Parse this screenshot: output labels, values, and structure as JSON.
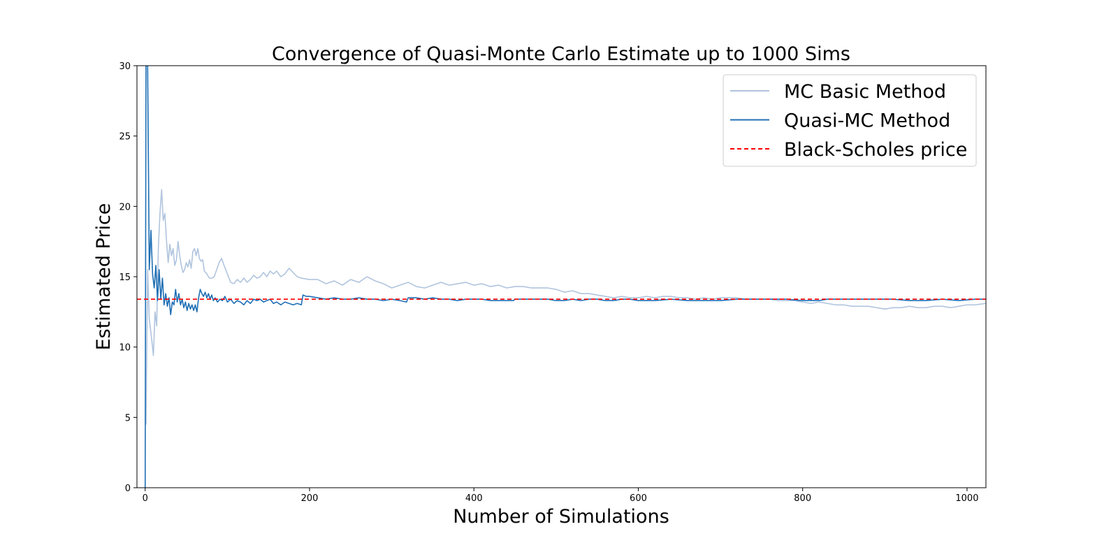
{
  "chart_data": {
    "type": "line",
    "title": "Convergence of Quasi-Monte Carlo Estimate up to 1000 Sims",
    "xlabel": "Number of Simulations",
    "ylabel": "Estimated Price",
    "xlim": [
      -10,
      1023
    ],
    "ylim": [
      0,
      30
    ],
    "xticks": [
      0,
      200,
      400,
      600,
      800,
      1000
    ],
    "yticks": [
      0,
      5,
      10,
      15,
      20,
      25,
      30
    ],
    "grid": false,
    "legend_position": "top-right",
    "series": [
      {
        "name": "MC Basic Method",
        "color": "#b0c4de",
        "style": "solid",
        "points": [
          [
            1,
            4.5
          ],
          [
            3,
            15.5
          ],
          [
            5,
            12.0
          ],
          [
            8,
            10.5
          ],
          [
            10,
            9.4
          ],
          [
            12,
            12.5
          ],
          [
            14,
            11.5
          ],
          [
            16,
            17.0
          ],
          [
            18,
            19.5
          ],
          [
            20,
            21.2
          ],
          [
            22,
            19.0
          ],
          [
            24,
            19.5
          ],
          [
            26,
            17.5
          ],
          [
            28,
            16.0
          ],
          [
            30,
            17.3
          ],
          [
            32,
            16.5
          ],
          [
            34,
            17.0
          ],
          [
            36,
            15.8
          ],
          [
            38,
            16.2
          ],
          [
            40,
            17.5
          ],
          [
            42,
            16.5
          ],
          [
            44,
            15.8
          ],
          [
            46,
            15.3
          ],
          [
            48,
            15.5
          ],
          [
            50,
            16.0
          ],
          [
            52,
            15.7
          ],
          [
            54,
            16.2
          ],
          [
            56,
            15.6
          ],
          [
            58,
            16.8
          ],
          [
            60,
            17.0
          ],
          [
            62,
            16.5
          ],
          [
            64,
            17.0
          ],
          [
            66,
            16.3
          ],
          [
            68,
            16.1
          ],
          [
            70,
            16.2
          ],
          [
            72,
            15.4
          ],
          [
            75,
            15.2
          ],
          [
            78,
            14.9
          ],
          [
            81,
            14.9
          ],
          [
            84,
            15.0
          ],
          [
            87,
            15.5
          ],
          [
            90,
            16.0
          ],
          [
            93,
            16.3
          ],
          [
            96,
            15.8
          ],
          [
            100,
            15.2
          ],
          [
            104,
            14.6
          ],
          [
            108,
            14.5
          ],
          [
            112,
            14.8
          ],
          [
            116,
            14.6
          ],
          [
            120,
            14.9
          ],
          [
            124,
            14.6
          ],
          [
            128,
            14.8
          ],
          [
            132,
            15.1
          ],
          [
            136,
            14.9
          ],
          [
            140,
            15.0
          ],
          [
            144,
            15.3
          ],
          [
            148,
            15.0
          ],
          [
            152,
            15.4
          ],
          [
            156,
            15.2
          ],
          [
            160,
            15.4
          ],
          [
            165,
            15.0
          ],
          [
            170,
            15.2
          ],
          [
            175,
            15.6
          ],
          [
            180,
            15.3
          ],
          [
            185,
            15.0
          ],
          [
            190,
            14.9
          ],
          [
            200,
            14.8
          ],
          [
            210,
            14.8
          ],
          [
            220,
            14.5
          ],
          [
            230,
            14.7
          ],
          [
            240,
            14.4
          ],
          [
            250,
            14.8
          ],
          [
            260,
            14.6
          ],
          [
            270,
            15.0
          ],
          [
            280,
            14.7
          ],
          [
            290,
            14.5
          ],
          [
            300,
            14.2
          ],
          [
            310,
            14.4
          ],
          [
            320,
            14.6
          ],
          [
            330,
            14.3
          ],
          [
            340,
            14.2
          ],
          [
            350,
            14.4
          ],
          [
            360,
            14.6
          ],
          [
            370,
            14.4
          ],
          [
            380,
            14.5
          ],
          [
            390,
            14.6
          ],
          [
            400,
            14.4
          ],
          [
            410,
            14.5
          ],
          [
            420,
            14.3
          ],
          [
            430,
            14.4
          ],
          [
            440,
            14.2
          ],
          [
            450,
            14.3
          ],
          [
            460,
            14.3
          ],
          [
            470,
            14.2
          ],
          [
            480,
            14.2
          ],
          [
            490,
            14.2
          ],
          [
            500,
            14.1
          ],
          [
            510,
            13.9
          ],
          [
            520,
            14.0
          ],
          [
            530,
            13.8
          ],
          [
            540,
            13.8
          ],
          [
            550,
            13.7
          ],
          [
            560,
            13.6
          ],
          [
            570,
            13.5
          ],
          [
            580,
            13.6
          ],
          [
            590,
            13.5
          ],
          [
            600,
            13.5
          ],
          [
            610,
            13.6
          ],
          [
            620,
            13.5
          ],
          [
            630,
            13.6
          ],
          [
            640,
            13.6
          ],
          [
            650,
            13.5
          ],
          [
            660,
            13.5
          ],
          [
            670,
            13.4
          ],
          [
            680,
            13.5
          ],
          [
            690,
            13.4
          ],
          [
            700,
            13.5
          ],
          [
            710,
            13.5
          ],
          [
            720,
            13.5
          ],
          [
            730,
            13.4
          ],
          [
            740,
            13.4
          ],
          [
            750,
            13.4
          ],
          [
            760,
            13.4
          ],
          [
            770,
            13.3
          ],
          [
            780,
            13.3
          ],
          [
            790,
            13.3
          ],
          [
            800,
            13.2
          ],
          [
            810,
            13.1
          ],
          [
            820,
            13.2
          ],
          [
            830,
            13.1
          ],
          [
            840,
            13.0
          ],
          [
            850,
            13.0
          ],
          [
            860,
            12.9
          ],
          [
            870,
            12.9
          ],
          [
            880,
            12.9
          ],
          [
            890,
            12.8
          ],
          [
            900,
            12.7
          ],
          [
            910,
            12.8
          ],
          [
            920,
            12.8
          ],
          [
            930,
            12.9
          ],
          [
            940,
            12.8
          ],
          [
            950,
            12.8
          ],
          [
            960,
            12.9
          ],
          [
            970,
            12.9
          ],
          [
            980,
            12.8
          ],
          [
            990,
            12.9
          ],
          [
            1000,
            13.0
          ],
          [
            1010,
            13.0
          ],
          [
            1023,
            13.1
          ]
        ]
      },
      {
        "name": "Quasi-MC Method",
        "color": "#1f6fb5",
        "style": "solid",
        "points": [
          [
            0,
            0.0
          ],
          [
            1,
            30.0
          ],
          [
            3,
            30.0
          ],
          [
            5,
            15.5
          ],
          [
            7,
            18.3
          ],
          [
            9,
            15.2
          ],
          [
            11,
            14.2
          ],
          [
            13,
            15.8
          ],
          [
            15,
            13.3
          ],
          [
            17,
            15.5
          ],
          [
            19,
            13.4
          ],
          [
            21,
            14.9
          ],
          [
            23,
            13.0
          ],
          [
            25,
            13.8
          ],
          [
            27,
            12.9
          ],
          [
            29,
            13.5
          ],
          [
            31,
            12.3
          ],
          [
            33,
            13.2
          ],
          [
            35,
            13.0
          ],
          [
            37,
            14.1
          ],
          [
            39,
            13.2
          ],
          [
            41,
            13.8
          ],
          [
            43,
            13.0
          ],
          [
            45,
            13.4
          ],
          [
            47,
            12.8
          ],
          [
            49,
            13.2
          ],
          [
            51,
            12.6
          ],
          [
            53,
            13.1
          ],
          [
            55,
            12.7
          ],
          [
            57,
            13.0
          ],
          [
            59,
            12.6
          ],
          [
            61,
            13.0
          ],
          [
            63,
            12.5
          ],
          [
            65,
            13.5
          ],
          [
            67,
            14.1
          ],
          [
            69,
            13.8
          ],
          [
            71,
            13.6
          ],
          [
            73,
            13.9
          ],
          [
            75,
            13.5
          ],
          [
            77,
            13.8
          ],
          [
            79,
            13.4
          ],
          [
            81,
            13.7
          ],
          [
            83,
            13.3
          ],
          [
            85,
            13.5
          ],
          [
            88,
            13.2
          ],
          [
            91,
            13.4
          ],
          [
            94,
            13.3
          ],
          [
            97,
            13.6
          ],
          [
            100,
            13.2
          ],
          [
            104,
            13.4
          ],
          [
            108,
            13.1
          ],
          [
            112,
            13.3
          ],
          [
            116,
            13.2
          ],
          [
            120,
            13.0
          ],
          [
            124,
            13.3
          ],
          [
            128,
            13.1
          ],
          [
            132,
            13.4
          ],
          [
            136,
            13.3
          ],
          [
            140,
            13.4
          ],
          [
            144,
            13.2
          ],
          [
            148,
            13.3
          ],
          [
            152,
            13.4
          ],
          [
            156,
            13.1
          ],
          [
            160,
            13.2
          ],
          [
            165,
            13.0
          ],
          [
            170,
            13.2
          ],
          [
            175,
            13.1
          ],
          [
            180,
            13.0
          ],
          [
            185,
            13.1
          ],
          [
            190,
            13.0
          ],
          [
            192,
            13.7
          ],
          [
            196,
            13.6
          ],
          [
            200,
            13.6
          ],
          [
            210,
            13.5
          ],
          [
            220,
            13.4
          ],
          [
            230,
            13.5
          ],
          [
            240,
            13.4
          ],
          [
            250,
            13.4
          ],
          [
            260,
            13.5
          ],
          [
            270,
            13.4
          ],
          [
            280,
            13.4
          ],
          [
            290,
            13.3
          ],
          [
            300,
            13.4
          ],
          [
            310,
            13.3
          ],
          [
            318,
            13.2
          ],
          [
            320,
            13.5
          ],
          [
            330,
            13.5
          ],
          [
            340,
            13.4
          ],
          [
            350,
            13.5
          ],
          [
            360,
            13.4
          ],
          [
            370,
            13.4
          ],
          [
            380,
            13.3
          ],
          [
            390,
            13.4
          ],
          [
            400,
            13.4
          ],
          [
            410,
            13.4
          ],
          [
            420,
            13.3
          ],
          [
            430,
            13.3
          ],
          [
            440,
            13.3
          ],
          [
            448,
            13.3
          ],
          [
            450,
            13.4
          ],
          [
            460,
            13.4
          ],
          [
            470,
            13.4
          ],
          [
            480,
            13.4
          ],
          [
            490,
            13.4
          ],
          [
            500,
            13.3
          ],
          [
            510,
            13.3
          ],
          [
            520,
            13.4
          ],
          [
            530,
            13.3
          ],
          [
            540,
            13.4
          ],
          [
            550,
            13.4
          ],
          [
            560,
            13.3
          ],
          [
            570,
            13.3
          ],
          [
            580,
            13.4
          ],
          [
            590,
            13.4
          ],
          [
            600,
            13.3
          ],
          [
            620,
            13.3
          ],
          [
            640,
            13.4
          ],
          [
            660,
            13.3
          ],
          [
            680,
            13.3
          ],
          [
            700,
            13.3
          ],
          [
            720,
            13.4
          ],
          [
            740,
            13.4
          ],
          [
            760,
            13.4
          ],
          [
            780,
            13.4
          ],
          [
            800,
            13.3
          ],
          [
            820,
            13.3
          ],
          [
            830,
            13.4
          ],
          [
            850,
            13.4
          ],
          [
            870,
            13.4
          ],
          [
            890,
            13.4
          ],
          [
            910,
            13.4
          ],
          [
            930,
            13.3
          ],
          [
            950,
            13.3
          ],
          [
            970,
            13.4
          ],
          [
            990,
            13.3
          ],
          [
            1010,
            13.4
          ],
          [
            1023,
            13.4
          ]
        ]
      },
      {
        "name": "Black-Scholes price",
        "color": "#ff0000",
        "style": "dashed",
        "points": [
          [
            -10,
            13.4
          ],
          [
            1023,
            13.4
          ]
        ]
      }
    ]
  }
}
